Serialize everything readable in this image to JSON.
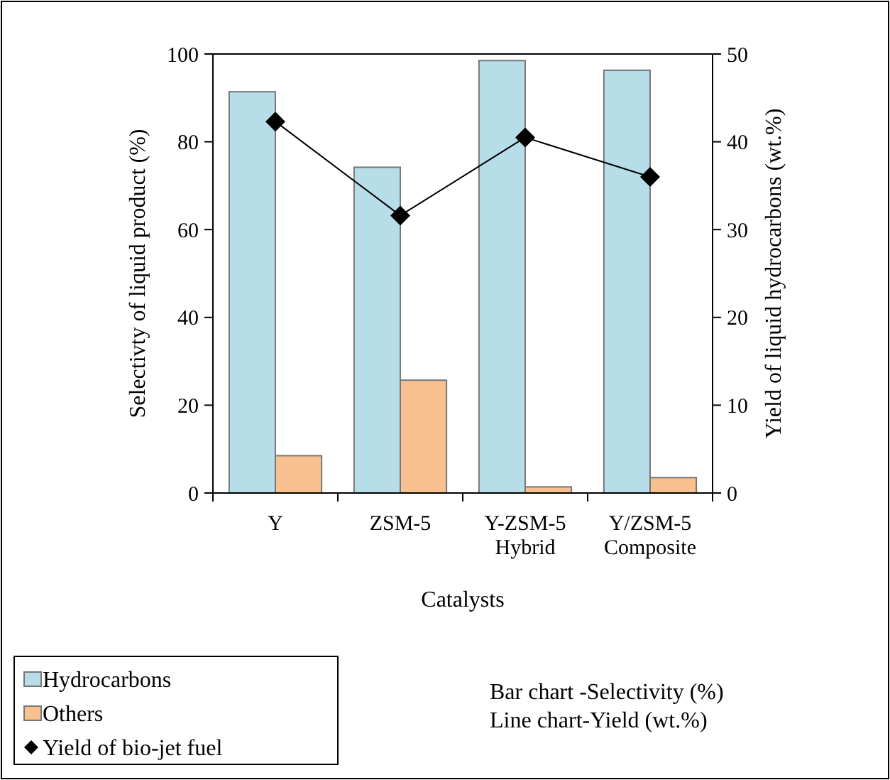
{
  "chart_data": {
    "type": "bar",
    "xlabel": "Catalysts",
    "ylabel": "Selectivty of liquid product (%)",
    "y2label": "Yield of liquid hydrocarbons (wt.%)",
    "categories": [
      "Y",
      "ZSM-5",
      "Y-ZSM-5\nHybrid",
      "Y/ZSM-5\nComposite"
    ],
    "series": [
      {
        "name": "Hydrocarbons",
        "color": "#b7dde8",
        "values": [
          91.4,
          74.2,
          98.5,
          96.3
        ]
      },
      {
        "name": "Others",
        "color": "#f9c090",
        "values": [
          8.5,
          25.7,
          1.4,
          3.5
        ]
      },
      {
        "name": "Yield of bio-jet fuel",
        "type": "line",
        "axis": "y2",
        "color": "#000000",
        "marker": "diamond",
        "values": [
          42.3,
          31.6,
          40.5,
          36.0
        ]
      }
    ],
    "ylim": [
      0,
      100
    ],
    "yticks": [
      0,
      20,
      40,
      60,
      80,
      100
    ],
    "y2lim": [
      0,
      50
    ],
    "y2ticks": [
      0,
      10,
      20,
      30,
      40,
      50
    ],
    "legend": "bottom left",
    "grid": false,
    "annotations": [
      "Bar chart -Selectivity (%)",
      "Line chart-Yield (wt.%)"
    ]
  }
}
